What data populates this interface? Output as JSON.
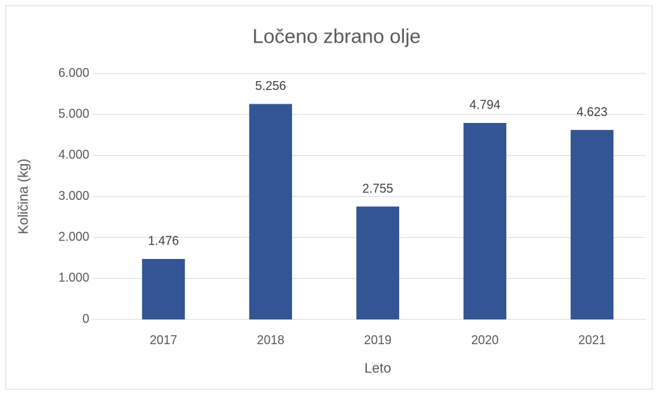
{
  "chart_data": {
    "type": "bar",
    "title": "Ločeno zbrano olje",
    "x_label": "Leto",
    "y_label": "Količina (kg)",
    "categories": [
      "2017",
      "2018",
      "2019",
      "2020",
      "2021"
    ],
    "values": [
      1476,
      5256,
      2755,
      4794,
      4623
    ],
    "value_labels": [
      "1.476",
      "5.256",
      "2.755",
      "4.794",
      "4.623"
    ],
    "color": "#335593",
    "ylim": [
      0,
      6000
    ],
    "yticks": [
      0,
      {
        "value": 1000,
        "label": "1.000"
      },
      {
        "value": 2000,
        "label": "2.000"
      },
      {
        "value": 3000,
        "label": "3.000"
      },
      {
        "value": 4000,
        "label": "4.000"
      },
      {
        "value": 5000,
        "label": "5.000"
      },
      {
        "value": 6000,
        "label": "6.000"
      }
    ],
    "grid": true
  }
}
